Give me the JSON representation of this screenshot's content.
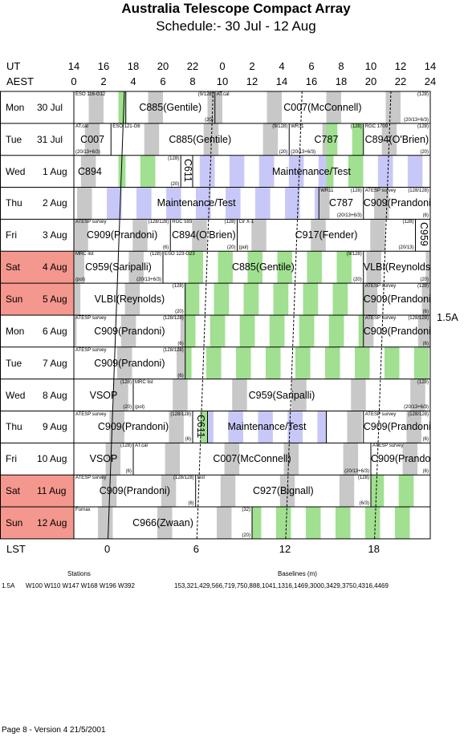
{
  "title": "Australia Telescope Compact Array",
  "subtitle": "Schedule:- 30 Jul - 12 Aug",
  "axis": {
    "ut_label": "UT",
    "aest_label": "AEST",
    "lst_label": "LST",
    "ut_ticks": [
      "14",
      "16",
      "18",
      "20",
      "22",
      "0",
      "2",
      "4",
      "6",
      "8",
      "10",
      "12",
      "14"
    ],
    "aest_ticks": [
      "0",
      "2",
      "4",
      "6",
      "8",
      "10",
      "12",
      "14",
      "16",
      "18",
      "20",
      "22",
      "24"
    ],
    "lst_ticks": [
      "0",
      "6",
      "12",
      "18"
    ]
  },
  "days": [
    {
      "name": "Mon",
      "num": "30 Jul",
      "weekend": false
    },
    {
      "name": "Tue",
      "num": "31 Jul",
      "weekend": false
    },
    {
      "name": "Wed",
      "num": "1 Aug",
      "weekend": false
    },
    {
      "name": "Thu",
      "num": "2 Aug",
      "weekend": false
    },
    {
      "name": "Fri",
      "num": "3 Aug",
      "weekend": false
    },
    {
      "name": "Sat",
      "num": "4 Aug",
      "weekend": true
    },
    {
      "name": "Sun",
      "num": "5 Aug",
      "weekend": true
    },
    {
      "name": "Mon",
      "num": "6 Aug",
      "weekend": false
    },
    {
      "name": "Tue",
      "num": "7 Aug",
      "weekend": false
    },
    {
      "name": "Wed",
      "num": "8 Aug",
      "weekend": false
    },
    {
      "name": "Thu",
      "num": "9 Aug",
      "weekend": false
    },
    {
      "name": "Fri",
      "num": "10 Aug",
      "weekend": false
    },
    {
      "name": "Sat",
      "num": "11 Aug",
      "weekend": true
    },
    {
      "name": "Sun",
      "num": "12 Aug",
      "weekend": true
    }
  ],
  "blocks": [
    [
      {
        "start": 0,
        "end": 3.5,
        "code": "",
        "src": "ESO 116-G12"
      },
      {
        "start": 3.5,
        "end": 9.5,
        "code": "C885(Gentile)",
        "src": "",
        "srcr": "(9/128)",
        "subr": "(20)"
      },
      {
        "start": 9.5,
        "end": 24,
        "code": "C007(McConnell)",
        "src": "AT.cal",
        "srcr": "(128)",
        "subr": "(20/13+6/3)"
      }
    ],
    [
      {
        "start": 0,
        "end": 2.5,
        "code": "C007",
        "src": "AT.cal",
        "subl": "(20/13+6/3)"
      },
      {
        "start": 2.5,
        "end": 14.5,
        "code": "C885(Gentile)",
        "src": "ESO 121-G6",
        "srcr": "(9/128)",
        "subr": "(20)"
      },
      {
        "start": 14.5,
        "end": 19.5,
        "code": "C787",
        "src": "WR11",
        "srcr": "(128)",
        "subl": "(20/13+6/3)"
      },
      {
        "start": 19.5,
        "end": 24,
        "code": "C894(O'Brien)",
        "src": "RGC 1709",
        "srcr": "(128)",
        "subr": "(20)"
      }
    ],
    [
      {
        "start": 0,
        "end": 7.2,
        "code": "C894",
        "srcr": "(128)",
        "subr": "(20)",
        "align": "left"
      },
      {
        "start": 7.2,
        "end": 8,
        "code": "",
        "vcode": "C611"
      },
      {
        "start": 8,
        "end": 24,
        "code": "Maintenance/Test"
      }
    ],
    [
      {
        "start": 0,
        "end": 16.5,
        "code": "Maintenance/Test"
      },
      {
        "start": 16.5,
        "end": 19.5,
        "code": "C787",
        "src": "WR11",
        "srcr": "(128)",
        "subr": "(20/13+6/3)"
      },
      {
        "start": 19.5,
        "end": 24,
        "code": "C909(Prandoni)",
        "src": "ATESP survey",
        "srcr": "(128/128)",
        "subr": "(6)"
      }
    ],
    [
      {
        "start": 0,
        "end": 6.5,
        "code": "C909(Prandoni)",
        "src": "ATESP survey",
        "srcr": "(128/128)",
        "subr": "(6)"
      },
      {
        "start": 6.5,
        "end": 11,
        "code": "C894(O'Brien)",
        "src": "RGC 593",
        "srcr": "(128)",
        "subr": "(20)"
      },
      {
        "start": 11,
        "end": 23,
        "code": "C917(Fender)",
        "src": "Cir X-1",
        "srcr": "(128)",
        "subl": "(pol)",
        "subr": "(20/13)"
      },
      {
        "start": 23,
        "end": 24,
        "code": "",
        "vcode": "C959"
      }
    ],
    [
      {
        "start": 0,
        "end": 6,
        "code": "C959(Saripalli)",
        "src": "MRC list",
        "srcr": "(128)",
        "subl": "(pol)",
        "subr": "(20/13+6/3)"
      },
      {
        "start": 6,
        "end": 19.5,
        "code": "C885(Gentile)",
        "src": "ESO 123-G23",
        "srcr": "(9/128)",
        "subr": "(20)"
      },
      {
        "start": 19.5,
        "end": 24,
        "code": "VLBI(Reynolds)",
        "subr": "(20)"
      }
    ],
    [
      {
        "start": 0,
        "end": 7.5,
        "code": "VLBI(Reynolds)",
        "srcr": "(128)",
        "subr": "(20)"
      },
      {
        "start": 7.5,
        "end": 19.5,
        "code": ""
      },
      {
        "start": 19.5,
        "end": 24,
        "code": "C909(Prandoni)",
        "src": "ATESP survey",
        "srcr": "(128)",
        "subr": "(6)"
      }
    ],
    [
      {
        "start": 0,
        "end": 7.5,
        "code": "C909(Prandoni)",
        "src": "ATESP survey",
        "srcr": "(128/128)",
        "subr": "(6)"
      },
      {
        "start": 7.5,
        "end": 19.5,
        "code": ""
      },
      {
        "start": 19.5,
        "end": 24,
        "code": "C909(Prandoni)",
        "src": "ATESP survey",
        "srcr": "(128/128)",
        "subr": "(6)"
      }
    ],
    [
      {
        "start": 0,
        "end": 7.5,
        "code": "C909(Prandoni)",
        "src": "ATESP survey",
        "srcr": "(128/128)",
        "subr": "(6)"
      },
      {
        "start": 7.5,
        "end": 24,
        "code": ""
      }
    ],
    [
      {
        "start": 0,
        "end": 4,
        "code": "VSOP",
        "srcr": "(128)",
        "subr": "(20)"
      },
      {
        "start": 4,
        "end": 24,
        "code": "C959(Saripalli)",
        "src": "MRC list",
        "srcr": "(128)",
        "subl": "(pol)",
        "subr": "(20/13+6/3)"
      }
    ],
    [
      {
        "start": 0,
        "end": 8,
        "code": "C909(Prandoni)",
        "src": "ATESP survey",
        "srcr": "(128/128)",
        "subr": "(6)"
      },
      {
        "start": 8,
        "end": 9,
        "code": "",
        "vcode": "C611"
      },
      {
        "start": 9,
        "end": 17,
        "code": "Maintenance/Test"
      },
      {
        "start": 17,
        "end": 19.5,
        "code": ""
      },
      {
        "start": 19.5,
        "end": 24,
        "code": "C909(Prandoni)",
        "src": "ATESP survey",
        "srcr": "(128/128)",
        "subr": "(6)"
      }
    ],
    [
      {
        "start": 0,
        "end": 4,
        "code": "VSOP",
        "srcr": "(128)",
        "subr": "(6)"
      },
      {
        "start": 4,
        "end": 20,
        "code": "C007(McConnell)",
        "src": "AT.cal",
        "subr": "(20/13+6/3)"
      },
      {
        "start": 20,
        "end": 24,
        "code": "C909(Prandoni)",
        "src": "ATESP survey",
        "subr": "(6)"
      }
    ],
    [
      {
        "start": 0,
        "end": 8.2,
        "code": "C909(Prandoni)",
        "src": "ATESP survey",
        "srcr": "(128/128)",
        "subr": "(6)"
      },
      {
        "start": 8.2,
        "end": 20,
        "code": "C927(Bignall)",
        "src": "List",
        "srcr": "(128)",
        "subr": "(6/3)"
      },
      {
        "start": 20,
        "end": 24,
        "code": ""
      }
    ],
    [
      {
        "start": 0,
        "end": 12,
        "code": "C966(Zwaan)",
        "src": "Fornax",
        "srcr": "(32)",
        "subr": "(20)"
      },
      {
        "start": 12,
        "end": 24,
        "code": ""
      }
    ]
  ],
  "config": "1.5A",
  "stations": {
    "heading": "Stations",
    "config": "1.5A",
    "list": "W100 W110 W147 W168 W196 W392"
  },
  "baselines": {
    "heading": "Baselines (m)",
    "list": "153,321,429,566,719,750,888,1041,1316,1469,3000,3429,3750,4316,4469"
  },
  "footer": "Page 8 - Version 4  21/5/2001",
  "colors": {
    "weekend": "#f4978e",
    "gray": "#c8c8c8",
    "green": "#a0e090",
    "blue": "#c8c8f8"
  }
}
